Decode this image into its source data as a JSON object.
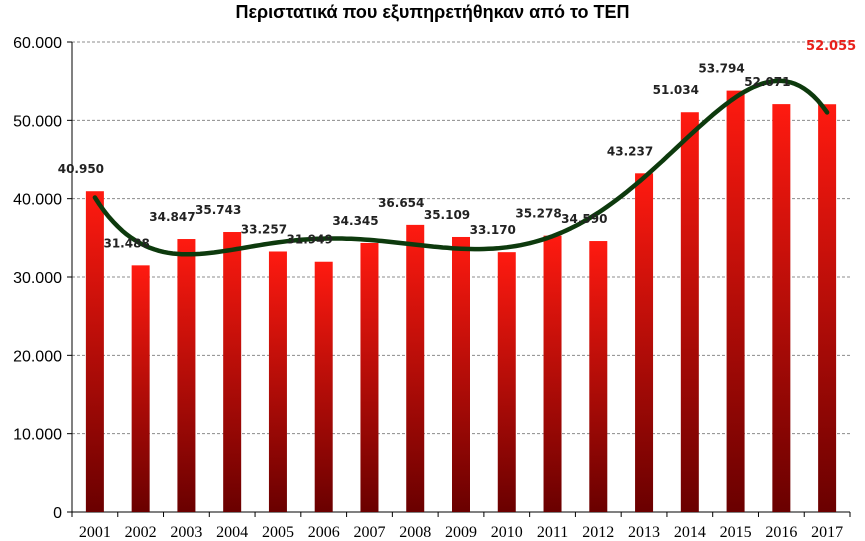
{
  "chart_data": {
    "type": "bar",
    "title": "Περιστατικά που εξυπηρετήθηκαν από το ΤΕΠ",
    "xlabel": "",
    "ylabel": "",
    "ylim": [
      0,
      60000
    ],
    "yticks": [
      0,
      10000,
      20000,
      30000,
      40000,
      50000,
      60000
    ],
    "ytick_labels": [
      "0",
      "10.000",
      "20.000",
      "30.000",
      "40.000",
      "50.000",
      "60.000"
    ],
    "grid": true,
    "categories": [
      "2001",
      "2002",
      "2003",
      "2004",
      "2005",
      "2006",
      "2007",
      "2008",
      "2009",
      "2010",
      "2011",
      "2012",
      "2013",
      "2014",
      "2015",
      "2016",
      "2017"
    ],
    "values": [
      40950,
      31488,
      34847,
      35743,
      33257,
      31949,
      34345,
      36654,
      35109,
      33170,
      35278,
      34590,
      43237,
      51034,
      53794,
      52071,
      52055
    ],
    "data_labels": [
      "40.950",
      "31.488",
      "34.847",
      "35.743",
      "33.257",
      "31.949",
      "34.345",
      "36.654",
      "35.109",
      "33.170",
      "35.278",
      "34.590",
      "43.237",
      "51.034",
      "53.794",
      "52.071",
      "52.055"
    ],
    "highlight_label_index": 16,
    "trendline": {
      "type": "polynomial",
      "color": "#0d3a0d"
    },
    "colors": {
      "bar_top": "#ff1a10",
      "bar_bottom": "#6a0000",
      "highlight_label": "#e8201a",
      "grid": "#8c8c8c"
    }
  }
}
